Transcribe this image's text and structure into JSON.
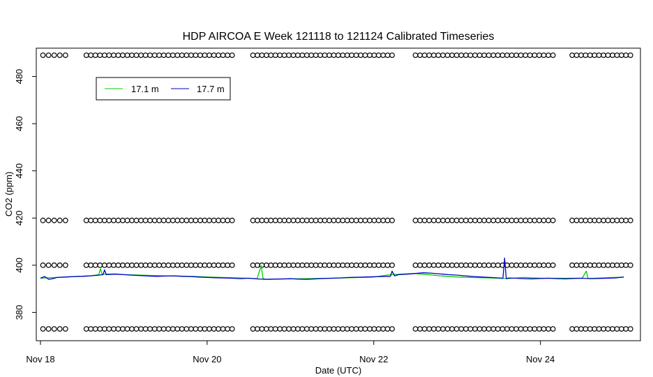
{
  "chart_data": {
    "type": "line",
    "title": "HDP AIRCOA E  Week 121118 to 121124  Calibrated Timeseries",
    "xlabel": "Date (UTC)",
    "ylabel": "CO2 (ppm)",
    "x_unit": "days",
    "xlim": [
      17.95,
      25.2
    ],
    "ylim": [
      368,
      492
    ],
    "x_ticks": [
      {
        "value": 18,
        "label": "Nov 18"
      },
      {
        "value": 20,
        "label": "Nov 20"
      },
      {
        "value": 22,
        "label": "Nov 22"
      },
      {
        "value": 24,
        "label": "Nov 24"
      }
    ],
    "y_ticks": [
      380,
      400,
      420,
      440,
      460,
      480
    ],
    "grid": false,
    "legend": {
      "placement": "top-left",
      "entries": [
        {
          "label": "17.1 m",
          "color": "#00cc00"
        },
        {
          "label": "17.7 m",
          "color": "#0000cc"
        }
      ]
    },
    "series": [
      {
        "name": "17.1 m",
        "color": "#00cc00",
        "x": [
          18.0,
          18.3,
          18.6,
          18.7,
          18.72,
          18.74,
          18.9,
          19.0,
          19.5,
          19.8,
          20.0,
          20.5,
          20.6,
          20.65,
          20.67,
          20.7,
          21.0,
          21.5,
          22.0,
          22.2,
          22.5,
          22.8,
          23.0,
          23.5,
          23.6,
          23.8,
          24.0,
          24.5,
          24.55,
          24.57,
          24.6,
          25.0
        ],
        "y": [
          394.5,
          395.0,
          395.5,
          396.0,
          398.5,
          396.2,
          396.3,
          396.0,
          395.5,
          395.3,
          395.0,
          394.5,
          394.3,
          399.8,
          394.5,
          394.0,
          394.2,
          394.5,
          395.0,
          396.0,
          396.5,
          395.5,
          395.0,
          394.5,
          394.3,
          394.8,
          394.5,
          394.5,
          397.5,
          394.5,
          394.4,
          395.0
        ]
      },
      {
        "name": "17.7 m",
        "color": "#0000cc",
        "x": [
          18.0,
          18.05,
          18.1,
          18.15,
          18.2,
          18.3,
          18.4,
          18.5,
          18.6,
          18.7,
          18.75,
          18.77,
          18.79,
          18.9,
          19.0,
          19.1,
          19.2,
          19.3,
          19.4,
          19.5,
          19.6,
          19.7,
          19.8,
          19.9,
          20.0,
          20.1,
          20.2,
          20.3,
          20.4,
          20.5,
          20.6,
          20.7,
          20.8,
          20.9,
          21.0,
          21.1,
          21.2,
          21.3,
          21.4,
          21.5,
          21.6,
          21.7,
          21.8,
          21.9,
          22.0,
          22.1,
          22.2,
          22.22,
          22.25,
          22.3,
          22.4,
          22.5,
          22.6,
          22.7,
          22.8,
          22.9,
          23.0,
          23.1,
          23.2,
          23.3,
          23.4,
          23.5,
          23.55,
          23.57,
          23.59,
          23.62,
          23.7,
          23.8,
          23.9,
          24.0,
          24.1,
          24.2,
          24.3,
          24.4,
          24.5,
          24.6,
          24.7,
          24.8,
          24.9,
          25.0
        ],
        "y": [
          394.5,
          395.2,
          394.0,
          394.3,
          394.8,
          395.0,
          395.2,
          395.3,
          395.5,
          395.8,
          396.0,
          398.0,
          396.0,
          396.2,
          396.0,
          395.8,
          395.6,
          395.4,
          395.3,
          395.4,
          395.5,
          395.3,
          395.2,
          395.0,
          394.8,
          394.7,
          394.6,
          394.5,
          394.3,
          394.5,
          394.2,
          394.0,
          394.1,
          394.2,
          394.3,
          394.1,
          394.0,
          394.2,
          394.4,
          394.5,
          394.6,
          394.8,
          394.9,
          395.0,
          395.1,
          395.2,
          395.3,
          397.5,
          395.5,
          396.0,
          396.2,
          396.5,
          396.8,
          396.6,
          396.3,
          396.0,
          395.8,
          395.5,
          395.2,
          395.0,
          394.8,
          394.6,
          394.5,
          403.0,
          394.3,
          394.6,
          394.5,
          394.3,
          394.2,
          394.4,
          394.5,
          394.3,
          394.2,
          394.4,
          394.5,
          394.3,
          394.4,
          394.5,
          394.6,
          395.0
        ]
      }
    ],
    "calibration_points": {
      "marker": "open-circle",
      "levels": [
        489,
        419,
        400,
        373
      ],
      "segments": [
        {
          "start": 18.03,
          "end": 18.3,
          "count": 5
        },
        {
          "start": 18.55,
          "end": 20.3,
          "count": 33
        },
        {
          "start": 20.55,
          "end": 22.22,
          "count": 32
        },
        {
          "start": 22.5,
          "end": 24.15,
          "count": 31
        },
        {
          "start": 24.38,
          "end": 25.08,
          "count": 14
        }
      ]
    }
  }
}
